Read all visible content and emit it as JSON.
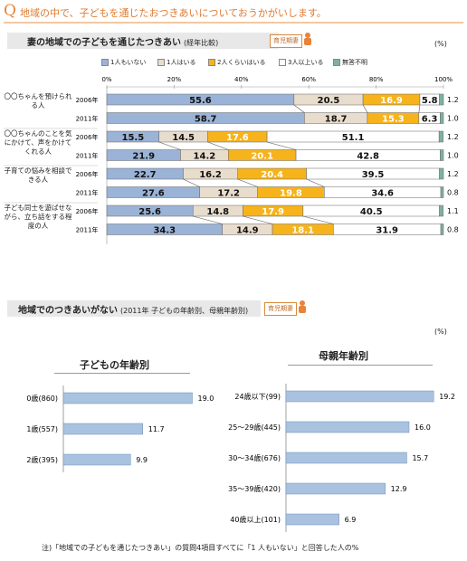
{
  "question": {
    "mark": "Q",
    "title": "地域の中で、子どもを通じたおつきあいについておうかがいします。"
  },
  "section1": {
    "title": "妻の地域での子どもを通じたつきあい",
    "sub": "(経年比較)",
    "badge": "育児期妻",
    "unit": "(%)"
  },
  "section2": {
    "title": "地域でのつきあいがない",
    "sub": "(2011年 子どもの年齢別、母親年齢別)",
    "badge": "育児期妻",
    "unit": "(%)"
  },
  "colors": {
    "s1": "#9bb3d6",
    "s2": "#e8dccc",
    "s3": "#f6b31c",
    "s4": "#ffffff",
    "s5": "#7fb0a3",
    "hbar": "#a9c2e0",
    "accent": "#e8833a"
  },
  "footnote": "注)「地域での子どもを通じたつきあい」の質問4項目すべてに「1 人もいない」と回答した人の%",
  "chart_data": [
    {
      "type": "bar",
      "stacked": true,
      "orientation": "horizontal",
      "title": "妻の地域での子どもを通じたつきあい",
      "subtitle": "(経年比較)",
      "unit": "(%)",
      "xlim": [
        0,
        100
      ],
      "ticks": [
        "0%",
        "20%",
        "40%",
        "60%",
        "80%",
        "100%"
      ],
      "legend_position": "top",
      "legend": [
        "1人もいない",
        "1人はいる",
        "2人くらいはいる",
        "3人以上いる",
        "無答不明"
      ],
      "groups": [
        {
          "label": "〇〇ちゃんを預けられる人"
        },
        {
          "label": "〇〇ちゃんのことを気にかけて、声をかけてくれる人"
        },
        {
          "label": "子育ての悩みを相談できる人"
        },
        {
          "label": "子ども同士を遊ばせながら、立ち話をする程度の人"
        }
      ],
      "rows": [
        {
          "group": 0,
          "year": "2006年",
          "values": [
            55.6,
            20.5,
            16.9,
            5.8,
            1.2
          ]
        },
        {
          "group": 0,
          "year": "2011年",
          "values": [
            58.7,
            18.7,
            15.3,
            6.3,
            1.0
          ]
        },
        {
          "group": 1,
          "year": "2006年",
          "values": [
            15.5,
            14.5,
            17.6,
            51.1,
            1.2
          ]
        },
        {
          "group": 1,
          "year": "2011年",
          "values": [
            21.9,
            14.2,
            20.1,
            42.8,
            1.0
          ]
        },
        {
          "group": 2,
          "year": "2006年",
          "values": [
            22.7,
            16.2,
            20.4,
            39.5,
            1.2
          ]
        },
        {
          "group": 2,
          "year": "2011年",
          "values": [
            27.6,
            17.2,
            19.8,
            34.6,
            0.8
          ]
        },
        {
          "group": 3,
          "year": "2006年",
          "values": [
            25.6,
            14.8,
            17.9,
            40.5,
            1.1
          ]
        },
        {
          "group": 3,
          "year": "2011年",
          "values": [
            34.3,
            14.9,
            18.1,
            31.9,
            0.8
          ]
        }
      ]
    },
    {
      "type": "bar",
      "orientation": "horizontal",
      "title": "子どもの年齢別",
      "xlim": [
        0,
        20
      ],
      "categories": [
        "0歳(860)",
        "1歳(557)",
        "2歳(395)"
      ],
      "values": [
        19.0,
        11.7,
        9.9
      ]
    },
    {
      "type": "bar",
      "orientation": "horizontal",
      "title": "母親年齢別",
      "xlim": [
        0,
        20
      ],
      "categories": [
        "24歳以下(99)",
        "25〜29歳(445)",
        "30〜34歳(676)",
        "35〜39歳(420)",
        "40歳以上(101)"
      ],
      "values": [
        19.2,
        16.0,
        15.7,
        12.9,
        6.9
      ]
    }
  ]
}
